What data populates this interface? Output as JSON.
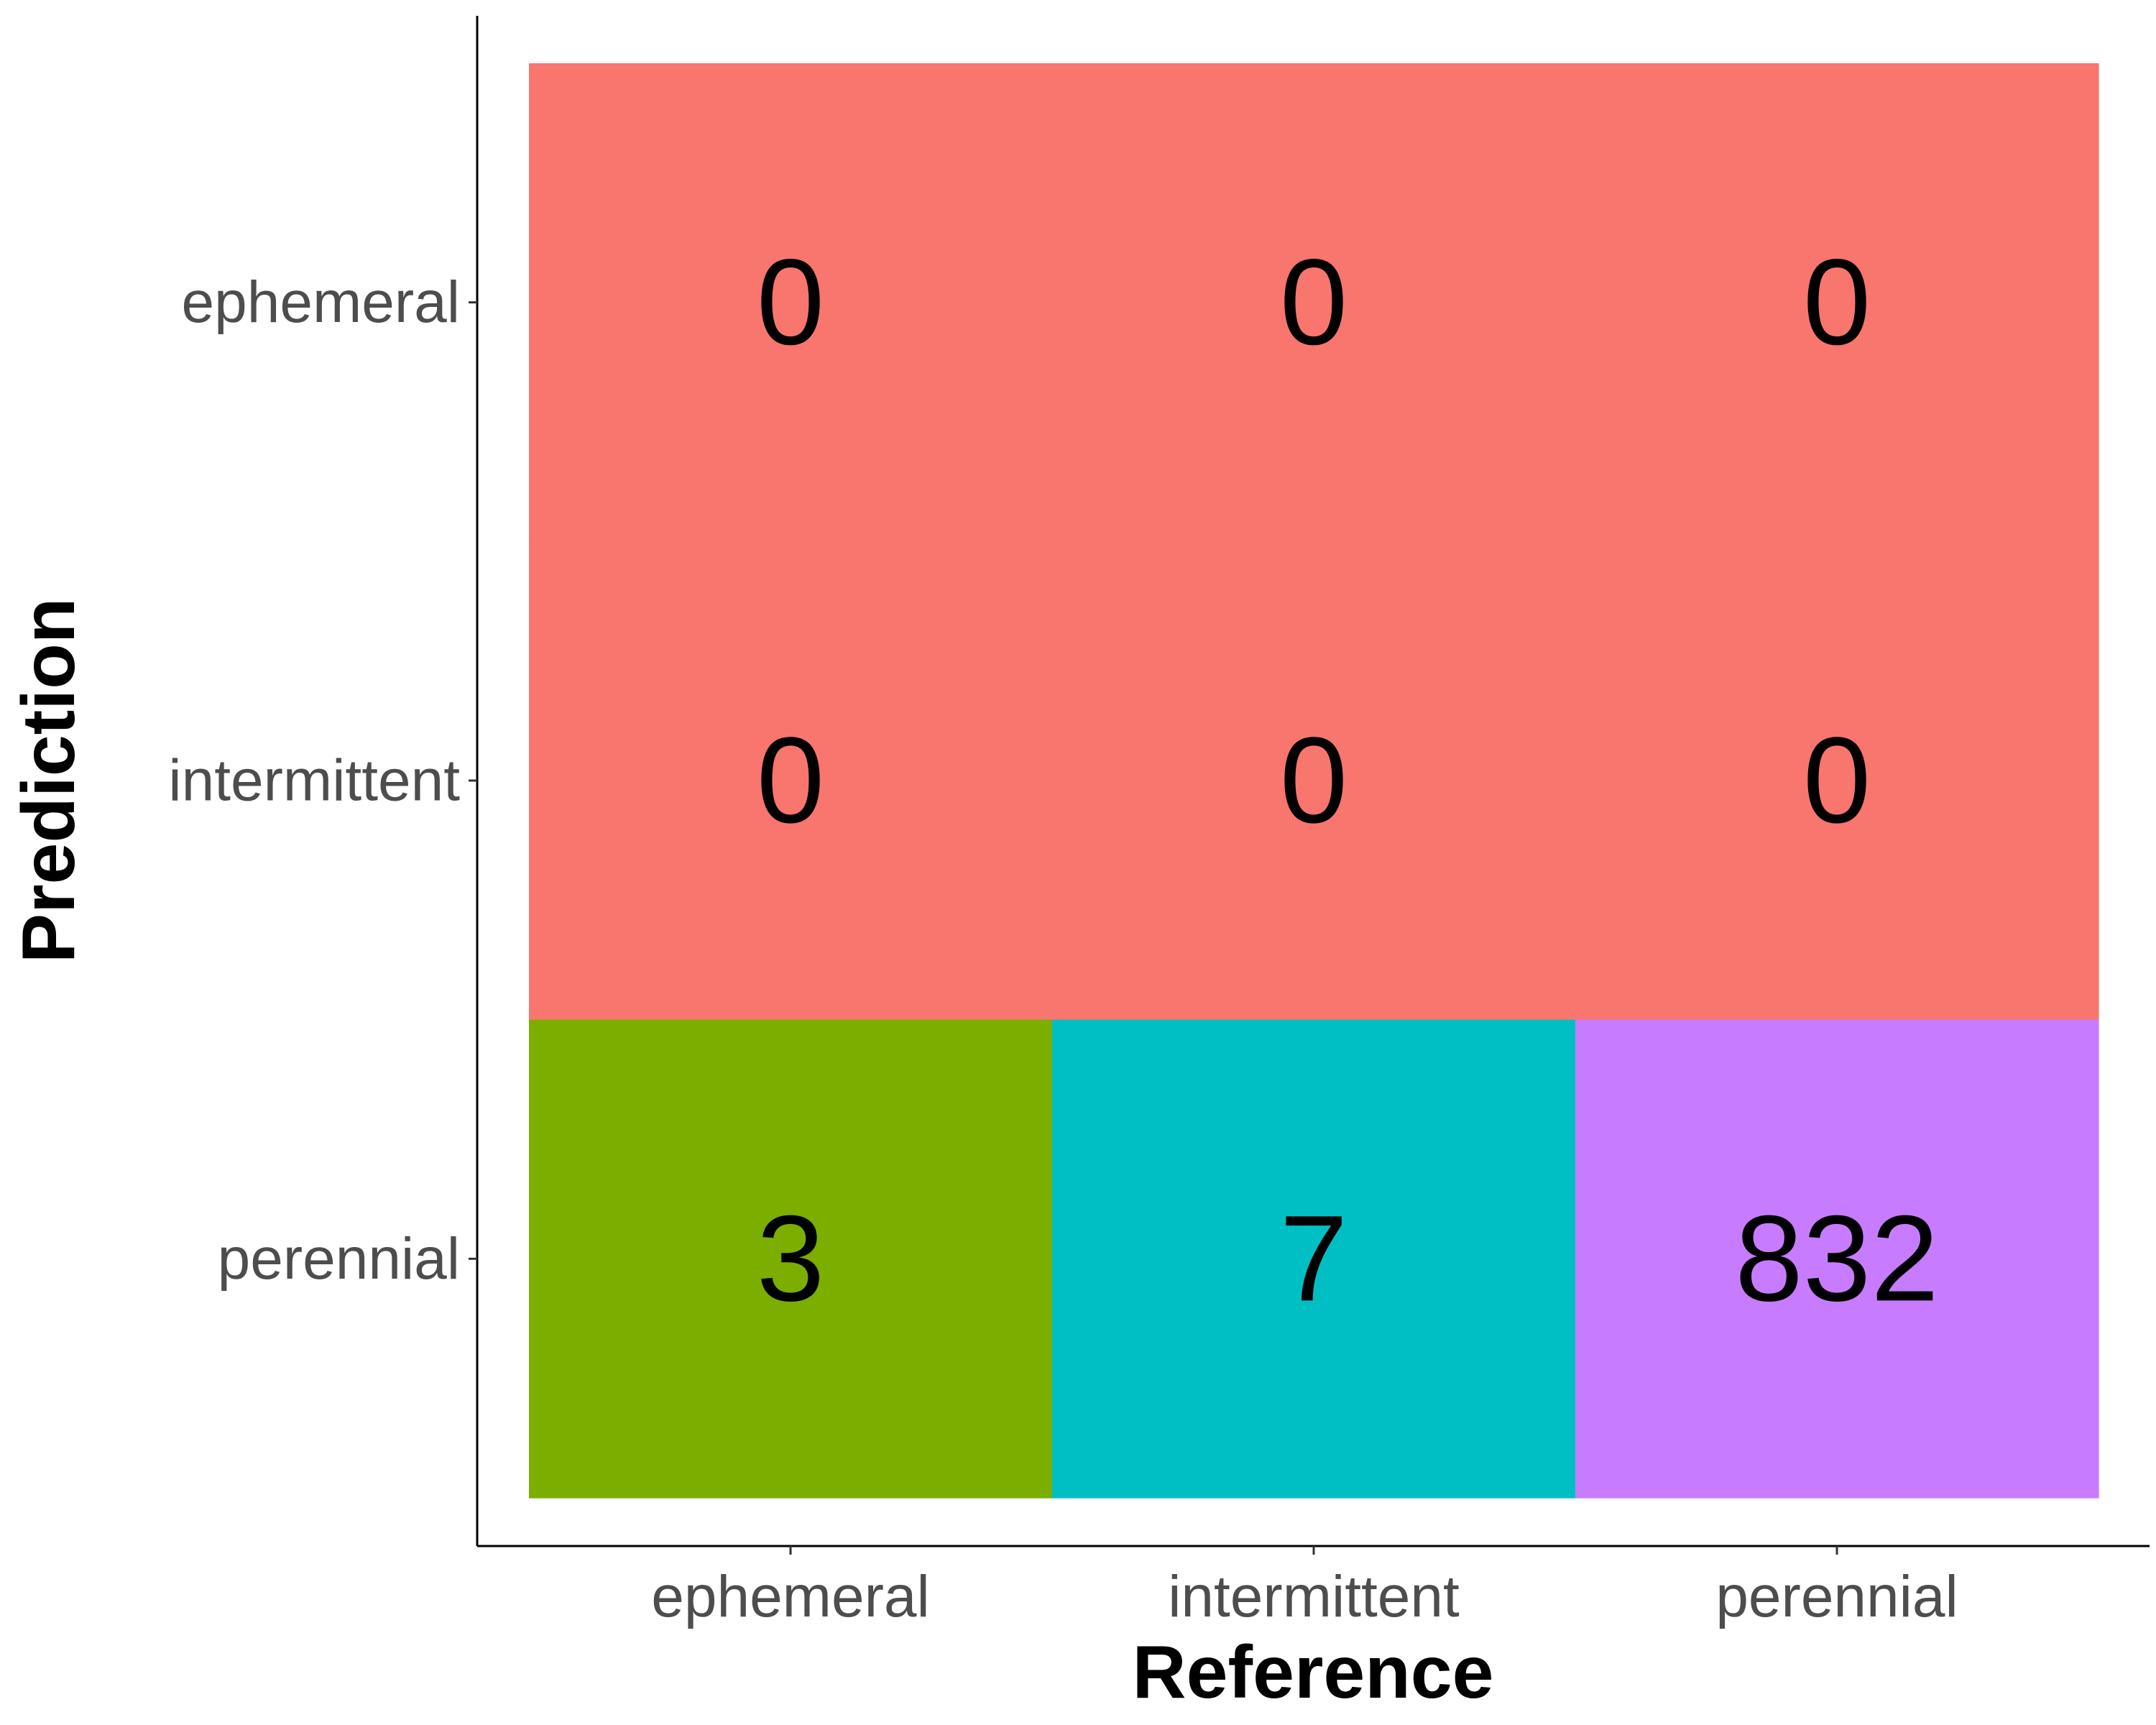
{
  "chart_data": {
    "type": "heatmap",
    "title": "",
    "xlabel": "Reference",
    "ylabel": "Prediction",
    "x_categories": [
      "ephemeral",
      "intermittent",
      "perennial"
    ],
    "y_categories": [
      "ephemeral",
      "intermittent",
      "perennial"
    ],
    "cells": [
      {
        "reference": "ephemeral",
        "prediction": "ephemeral",
        "value": 0,
        "label": "0",
        "color": "#F8766D"
      },
      {
        "reference": "intermittent",
        "prediction": "ephemeral",
        "value": 0,
        "label": "0",
        "color": "#F8766D"
      },
      {
        "reference": "perennial",
        "prediction": "ephemeral",
        "value": 0,
        "label": "0",
        "color": "#F8766D"
      },
      {
        "reference": "ephemeral",
        "prediction": "intermittent",
        "value": 0,
        "label": "0",
        "color": "#F8766D"
      },
      {
        "reference": "intermittent",
        "prediction": "intermittent",
        "value": 0,
        "label": "0",
        "color": "#F8766D"
      },
      {
        "reference": "perennial",
        "prediction": "intermittent",
        "value": 0,
        "label": "0",
        "color": "#F8766D"
      },
      {
        "reference": "ephemeral",
        "prediction": "perennial",
        "value": 3,
        "label": "3",
        "color": "#7CAE00"
      },
      {
        "reference": "intermittent",
        "prediction": "perennial",
        "value": 7,
        "label": "7",
        "color": "#00BFC4"
      },
      {
        "reference": "perennial",
        "prediction": "perennial",
        "value": 832,
        "label": "832",
        "color": "#C77CFF"
      }
    ],
    "grid": false,
    "legend": "none"
  }
}
